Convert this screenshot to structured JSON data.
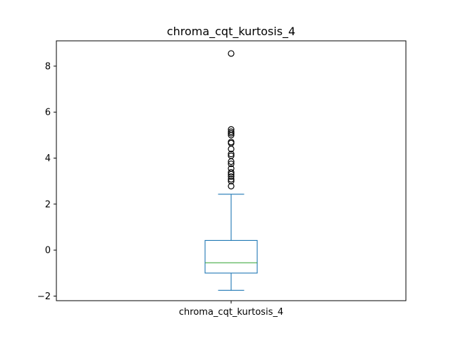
{
  "chart_data": {
    "type": "box",
    "title": "chroma_cqt_kurtosis_4",
    "categories": [
      "chroma_cqt_kurtosis_4"
    ],
    "xlabel": "",
    "ylabel": "",
    "ylim": [
      -2.2,
      9.1
    ],
    "yticks": [
      -2,
      0,
      2,
      4,
      6,
      8
    ],
    "grid": false,
    "boxes": [
      {
        "name": "chroma_cqt_kurtosis_4",
        "whisker_low": -1.75,
        "q1": -1.0,
        "median": -0.55,
        "q3": 0.42,
        "whisker_high": 2.43,
        "outliers": [
          2.78,
          3.0,
          3.08,
          3.2,
          3.3,
          3.38,
          3.55,
          3.75,
          3.85,
          4.1,
          4.18,
          4.4,
          4.65,
          4.7,
          5.0,
          5.08,
          5.15,
          5.25,
          8.55
        ]
      }
    ],
    "colors": {
      "box": "#1f77b4",
      "median": "#2ca02c",
      "outlier": "#000000",
      "axes": "#000000"
    }
  }
}
